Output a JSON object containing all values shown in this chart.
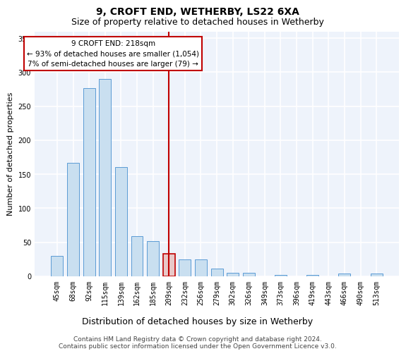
{
  "title": "9, CROFT END, WETHERBY, LS22 6XA",
  "subtitle": "Size of property relative to detached houses in Wetherby",
  "xlabel": "Distribution of detached houses by size in Wetherby",
  "ylabel": "Number of detached properties",
  "categories": [
    "45sqm",
    "68sqm",
    "92sqm",
    "115sqm",
    "139sqm",
    "162sqm",
    "185sqm",
    "209sqm",
    "232sqm",
    "256sqm",
    "279sqm",
    "302sqm",
    "326sqm",
    "349sqm",
    "373sqm",
    "396sqm",
    "419sqm",
    "443sqm",
    "466sqm",
    "490sqm",
    "513sqm"
  ],
  "values": [
    30,
    167,
    277,
    290,
    161,
    59,
    52,
    33,
    25,
    25,
    11,
    5,
    5,
    0,
    2,
    0,
    2,
    0,
    4,
    0,
    4
  ],
  "bar_color": "#c9dff0",
  "bar_edge_color": "#5b9bd5",
  "highlight_bar_index": 7,
  "highlight_bar_color": "#e8c8c8",
  "highlight_bar_edge_color": "#c00000",
  "vline_color": "#c00000",
  "annotation_text": "9 CROFT END: 218sqm\n← 93% of detached houses are smaller (1,054)\n7% of semi-detached houses are larger (79) →",
  "annotation_box_color": "#ffffff",
  "annotation_box_edge_color": "#c00000",
  "ylim": [
    0,
    360
  ],
  "yticks": [
    0,
    50,
    100,
    150,
    200,
    250,
    300,
    350
  ],
  "footer_line1": "Contains HM Land Registry data © Crown copyright and database right 2024.",
  "footer_line2": "Contains public sector information licensed under the Open Government Licence v3.0.",
  "background_color": "#eef3fb",
  "grid_color": "#ffffff",
  "title_fontsize": 10,
  "subtitle_fontsize": 9,
  "ylabel_fontsize": 8,
  "xlabel_fontsize": 9,
  "tick_fontsize": 7,
  "annotation_fontsize": 7.5,
  "footer_fontsize": 6.5
}
